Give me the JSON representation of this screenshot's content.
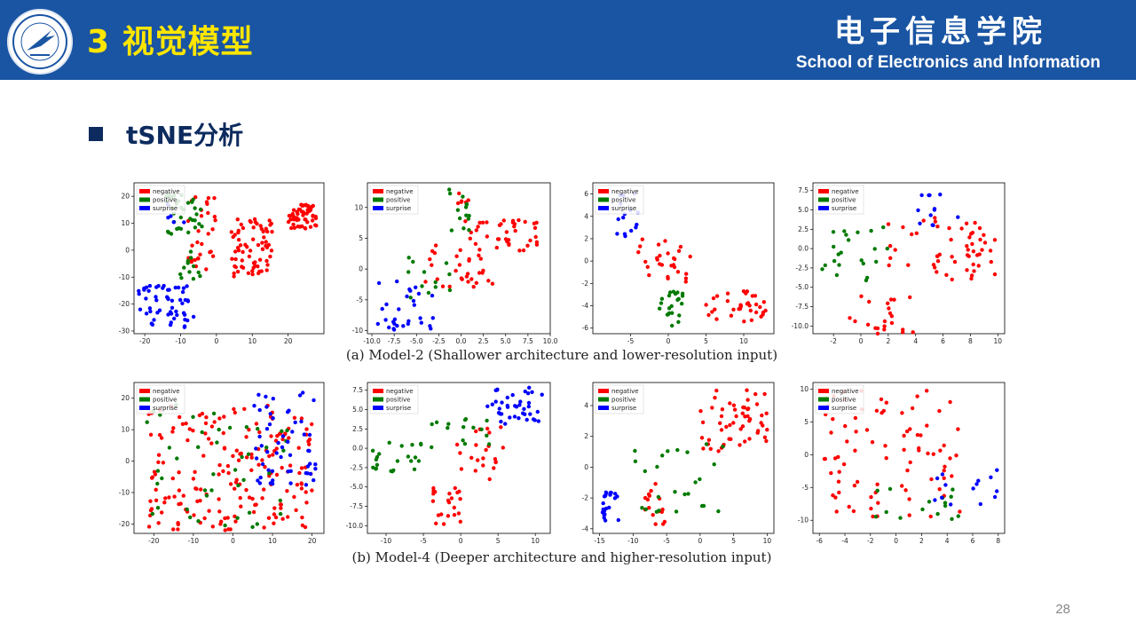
{
  "header": {
    "title": "3 视觉模型",
    "school_cn": "电子信息学院",
    "school_en": "School of Electronics and Information",
    "colors": {
      "bar": "#1a55a3",
      "title": "#ffe600",
      "text": "#ffffff"
    }
  },
  "section": {
    "heading": "tSNE分析"
  },
  "captions": [
    "(a) Model-2 (Shallower architecture and lower-resolution input)",
    "(b) Model-4 (Deeper architecture and higher-resolution input)"
  ],
  "page_number": "28",
  "legend": {
    "entries": [
      {
        "label": "negative",
        "color": "#ff0000"
      },
      {
        "label": "positive",
        "color": "#007a00"
      },
      {
        "label": "surprise",
        "color": "#0000ff"
      }
    ]
  },
  "chart_data": [
    {
      "type": "scatter",
      "row": "a",
      "xlim": [
        -23,
        30
      ],
      "ylim": [
        -31,
        25
      ],
      "xticks": [
        -20,
        -10,
        0,
        10,
        20
      ],
      "yticks": [
        20,
        10,
        0,
        -10,
        -20,
        -30
      ],
      "xtick_labels": [
        "-20",
        "-10",
        "0",
        "10",
        "20"
      ],
      "ytick_labels": [
        "20",
        "10",
        "0",
        "-10",
        "-20",
        "-30"
      ],
      "series": [
        {
          "name": "negative",
          "color": "#ff0000",
          "clusters": [
            {
              "x": [
                20,
                28
              ],
              "y": [
                8,
                17
              ],
              "n": 55
            },
            {
              "x": [
                4,
                16
              ],
              "y": [
                -10,
                12
              ],
              "n": 70
            },
            {
              "x": [
                -8,
                0
              ],
              "y": [
                -10,
                20
              ],
              "n": 30
            }
          ]
        },
        {
          "name": "positive",
          "color": "#007a00",
          "clusters": [
            {
              "x": [
                -14,
                -4
              ],
              "y": [
                6,
                21
              ],
              "n": 35
            },
            {
              "x": [
                -11,
                -3
              ],
              "y": [
                -12,
                0
              ],
              "n": 12
            }
          ]
        },
        {
          "name": "surprise",
          "color": "#0000ff",
          "clusters": [
            {
              "x": [
                -22,
                -6
              ],
              "y": [
                -30,
                -13
              ],
              "n": 55
            },
            {
              "x": [
                -14,
                -8
              ],
              "y": [
                9,
                20
              ],
              "n": 5
            }
          ]
        }
      ]
    },
    {
      "type": "scatter",
      "row": "a",
      "xlim": [
        -10.5,
        10
      ],
      "ylim": [
        -10.5,
        14
      ],
      "xticks": [
        -10,
        -7.5,
        -5,
        -2.5,
        0,
        2.5,
        5,
        7.5,
        10
      ],
      "yticks": [
        10,
        5,
        0,
        -5,
        -10
      ],
      "xtick_labels": [
        "-10.0",
        "-7.5",
        "-5.0",
        "-2.5",
        "0.0",
        "2.5",
        "5.0",
        "7.5",
        "10.0"
      ],
      "ytick_labels": [
        "10",
        "5",
        "0",
        "-5",
        "-10"
      ],
      "series": [
        {
          "name": "negative",
          "color": "#ff0000",
          "clusters": [
            {
              "x": [
                0,
                9
              ],
              "y": [
                3,
                8
              ],
              "n": 40
            },
            {
              "x": [
                -4,
                4
              ],
              "y": [
                -3,
                4
              ],
              "n": 30
            },
            {
              "x": [
                -1,
                1
              ],
              "y": [
                9,
                13
              ],
              "n": 6
            }
          ]
        },
        {
          "name": "positive",
          "color": "#007a00",
          "clusters": [
            {
              "x": [
                -2,
                1
              ],
              "y": [
                5,
                13
              ],
              "n": 14
            },
            {
              "x": [
                -6,
                -1
              ],
              "y": [
                -5,
                2
              ],
              "n": 12
            }
          ]
        },
        {
          "name": "surprise",
          "color": "#0000ff",
          "clusters": [
            {
              "x": [
                -9.5,
                -3
              ],
              "y": [
                -10,
                -2
              ],
              "n": 30
            }
          ]
        }
      ]
    },
    {
      "type": "scatter",
      "row": "a",
      "xlim": [
        -10,
        14
      ],
      "ylim": [
        -6.5,
        7
      ],
      "xticks": [
        -5,
        0,
        5,
        10
      ],
      "yticks": [
        6,
        4,
        2,
        0,
        -2,
        -4,
        -6
      ],
      "xtick_labels": [
        "-5",
        "0",
        "5",
        "10"
      ],
      "ytick_labels": [
        "6",
        "4",
        "2",
        "0",
        "-2",
        "-4",
        "-6"
      ],
      "series": [
        {
          "name": "negative",
          "color": "#ff0000",
          "clusters": [
            {
              "x": [
                5,
                13
              ],
              "y": [
                -5.5,
                -2.5
              ],
              "n": 35
            },
            {
              "x": [
                -4,
                3
              ],
              "y": [
                -2,
                2
              ],
              "n": 28
            }
          ]
        },
        {
          "name": "positive",
          "color": "#007a00",
          "clusters": [
            {
              "x": [
                -2,
                2
              ],
              "y": [
                -6,
                -2.5
              ],
              "n": 22
            }
          ]
        },
        {
          "name": "surprise",
          "color": "#0000ff",
          "clusters": [
            {
              "x": [
                -7,
                -4
              ],
              "y": [
                2,
                6.5
              ],
              "n": 15
            }
          ]
        }
      ]
    },
    {
      "type": "scatter",
      "row": "a",
      "xlim": [
        -3.5,
        10.5
      ],
      "ylim": [
        -11,
        8.5
      ],
      "xticks": [
        -2,
        0,
        2,
        4,
        6,
        8,
        10
      ],
      "yticks": [
        7.5,
        5,
        2.5,
        0,
        -2.5,
        -5,
        -7.5,
        -10
      ],
      "xtick_labels": [
        "-2",
        "0",
        "2",
        "4",
        "6",
        "8",
        "10"
      ],
      "ytick_labels": [
        "7.5",
        "5.0",
        "2.5",
        "0.0",
        "-2.5",
        "-5.0",
        "-7.5",
        "-10.0"
      ],
      "series": [
        {
          "name": "negative",
          "color": "#ff0000",
          "clusters": [
            {
              "x": [
                2,
                10
              ],
              "y": [
                -4,
                4
              ],
              "n": 55
            },
            {
              "x": [
                -1,
                4
              ],
              "y": [
                -11,
                -6
              ],
              "n": 22
            }
          ]
        },
        {
          "name": "positive",
          "color": "#007a00",
          "clusters": [
            {
              "x": [
                -3,
                2
              ],
              "y": [
                -4.5,
                3
              ],
              "n": 22
            }
          ]
        },
        {
          "name": "surprise",
          "color": "#0000ff",
          "clusters": [
            {
              "x": [
                4,
                7.5
              ],
              "y": [
                3,
                8
              ],
              "n": 12
            }
          ]
        }
      ]
    },
    {
      "type": "scatter",
      "row": "b",
      "xlim": [
        -25,
        23
      ],
      "ylim": [
        -23,
        25
      ],
      "xticks": [
        -20,
        -10,
        0,
        10,
        20
      ],
      "yticks": [
        20,
        10,
        0,
        -10,
        -20
      ],
      "xtick_labels": [
        "-20",
        "-10",
        "0",
        "10",
        "20"
      ],
      "ytick_labels": [
        "20",
        "10",
        "0",
        "-10",
        "-20"
      ],
      "series": [
        {
          "name": "negative",
          "color": "#ff0000",
          "clusters": [
            {
              "x": [
                -22,
                20
              ],
              "y": [
                -22,
                18
              ],
              "n": 190
            }
          ]
        },
        {
          "name": "positive",
          "color": "#007a00",
          "clusters": [
            {
              "x": [
                -22,
                15
              ],
              "y": [
                -22,
                18
              ],
              "n": 45
            }
          ]
        },
        {
          "name": "surprise",
          "color": "#0000ff",
          "clusters": [
            {
              "x": [
                5,
                21
              ],
              "y": [
                -8,
                24
              ],
              "n": 55
            }
          ]
        }
      ]
    },
    {
      "type": "scatter",
      "row": "b",
      "xlim": [
        -12.5,
        12
      ],
      "ylim": [
        -11,
        8.5
      ],
      "xticks": [
        -10,
        -5,
        0,
        5,
        10
      ],
      "yticks": [
        7.5,
        5,
        2.5,
        0,
        -2.5,
        -5,
        -7.5,
        -10
      ],
      "xtick_labels": [
        "-10",
        "-5",
        "0",
        "5",
        "10"
      ],
      "ytick_labels": [
        "7.5",
        "5.0",
        "2.5",
        "0.0",
        "-2.5",
        "-5.0",
        "-7.5",
        "-10.0"
      ],
      "series": [
        {
          "name": "negative",
          "color": "#ff0000",
          "clusters": [
            {
              "x": [
                -4,
                0
              ],
              "y": [
                -10.5,
                -5
              ],
              "n": 22
            },
            {
              "x": [
                -2,
                6
              ],
              "y": [
                -4,
                4
              ],
              "n": 22
            }
          ]
        },
        {
          "name": "positive",
          "color": "#007a00",
          "clusters": [
            {
              "x": [
                -12,
                -5
              ],
              "y": [
                -4,
                1
              ],
              "n": 22
            },
            {
              "x": [
                -4,
                4
              ],
              "y": [
                0,
                4
              ],
              "n": 15
            }
          ]
        },
        {
          "name": "surprise",
          "color": "#0000ff",
          "clusters": [
            {
              "x": [
                3,
                11
              ],
              "y": [
                3,
                8
              ],
              "n": 40
            }
          ]
        }
      ]
    },
    {
      "type": "scatter",
      "row": "b",
      "xlim": [
        -16,
        11
      ],
      "ylim": [
        -4.3,
        5.5
      ],
      "xticks": [
        -15,
        -10,
        -5,
        0,
        5,
        10
      ],
      "yticks": [
        4,
        2,
        0,
        -2,
        -4
      ],
      "xtick_labels": [
        "-15",
        "-10",
        "-5",
        "0",
        "5",
        "10"
      ],
      "ytick_labels": [
        "4",
        "2",
        "0",
        "-2",
        "-4"
      ],
      "series": [
        {
          "name": "negative",
          "color": "#ff0000",
          "clusters": [
            {
              "x": [
                0,
                10
              ],
              "y": [
                1,
                5
              ],
              "n": 55
            },
            {
              "x": [
                -9,
                -5
              ],
              "y": [
                -4,
                -1
              ],
              "n": 16
            }
          ]
        },
        {
          "name": "positive",
          "color": "#007a00",
          "clusters": [
            {
              "x": [
                -10,
                4
              ],
              "y": [
                -3,
                1.5
              ],
              "n": 25
            }
          ]
        },
        {
          "name": "surprise",
          "color": "#0000ff",
          "clusters": [
            {
              "x": [
                -15,
                -12
              ],
              "y": [
                -3.5,
                -1.5
              ],
              "n": 22
            }
          ]
        }
      ]
    },
    {
      "type": "scatter",
      "row": "b",
      "xlim": [
        -6.5,
        8.5
      ],
      "ylim": [
        -12,
        11
      ],
      "xticks": [
        -6,
        -4,
        -2,
        0,
        2,
        4,
        6,
        8
      ],
      "yticks": [
        10,
        5,
        0,
        -5,
        -10
      ],
      "xtick_labels": [
        "-6",
        "-4",
        "-2",
        "0",
        "2",
        "4",
        "6",
        "8"
      ],
      "ytick_labels": [
        "10",
        "5",
        "0",
        "-5",
        "-10"
      ],
      "series": [
        {
          "name": "negative",
          "color": "#ff0000",
          "clusters": [
            {
              "x": [
                -6,
                5
              ],
              "y": [
                -10,
                10
              ],
              "n": 85
            }
          ]
        },
        {
          "name": "positive",
          "color": "#007a00",
          "clusters": [
            {
              "x": [
                -2,
                5
              ],
              "y": [
                -10,
                -5
              ],
              "n": 15
            }
          ]
        },
        {
          "name": "surprise",
          "color": "#0000ff",
          "clusters": [
            {
              "x": [
                3,
                8
              ],
              "y": [
                -8,
                -2
              ],
              "n": 14
            }
          ]
        }
      ]
    }
  ]
}
